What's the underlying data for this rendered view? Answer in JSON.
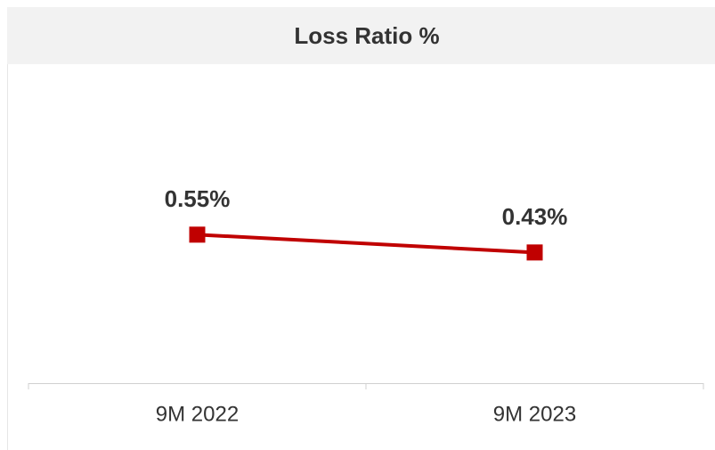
{
  "chart_data": {
    "type": "line",
    "title": "Loss Ratio %",
    "categories": [
      "9M 2022",
      "9M 2023"
    ],
    "series": [
      {
        "color": "#c00000",
        "values": [
          0.55,
          0.43
        ],
        "value_labels": [
          "0.55%",
          "0.43%"
        ]
      }
    ],
    "ylim": [
      -0.45,
      1.68
    ]
  }
}
